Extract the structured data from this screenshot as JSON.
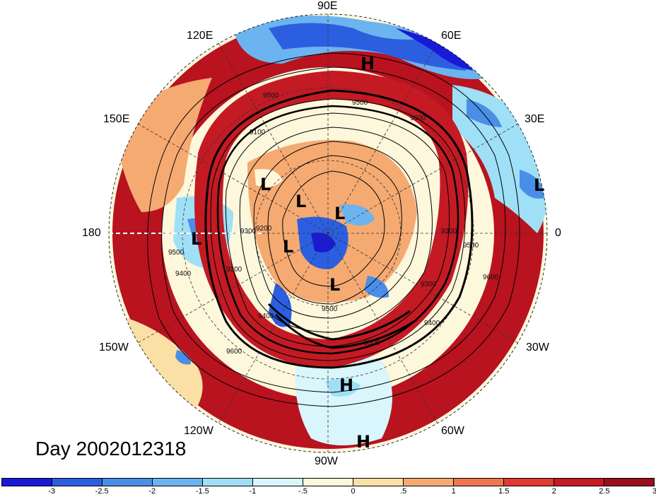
{
  "map": {
    "date_label": "Day 2002012318",
    "longitude_labels": {
      "lon_90E": "90E",
      "lon_60E": "60E",
      "lon_120E": "120E",
      "lon_30E": "30E",
      "lon_150E": "150E",
      "lon_180": "180",
      "lon_0": "0",
      "lon_150W": "150W",
      "lon_30W": "30W",
      "lon_120W": "120W",
      "lon_60W": "60W",
      "lon_90W": "90W"
    },
    "pressure_centers": [
      {
        "label": "H"
      },
      {
        "label": "L"
      },
      {
        "label": "L"
      },
      {
        "label": "L"
      },
      {
        "label": "L"
      },
      {
        "label": "L"
      },
      {
        "label": "L"
      },
      {
        "label": "L"
      },
      {
        "label": "H"
      },
      {
        "label": "H"
      }
    ],
    "contour_values": [
      "9500",
      "9500",
      "9100",
      "9600",
      "9300",
      "9400",
      "9300",
      "9500",
      "9500",
      "9300",
      "9400",
      "9200",
      "9600",
      "9400",
      "9500",
      "9500",
      "9600",
      "9300"
    ],
    "colorbar": {
      "colors": [
        "#1a1ad6",
        "#2c5fe0",
        "#4a8ee8",
        "#6cb4ef",
        "#9fe0f7",
        "#d8f6fb",
        "#fdf7dc",
        "#fbe0a5",
        "#f5aa72",
        "#ee7650",
        "#e23a32",
        "#c41a24",
        "#9a0f1c"
      ],
      "tick_labels": [
        "-3",
        "-2.5",
        "-2",
        "-1.5",
        "-1",
        "-.5",
        "0",
        ".5",
        "1",
        "1.5",
        "2",
        "2.5",
        "3"
      ]
    }
  }
}
